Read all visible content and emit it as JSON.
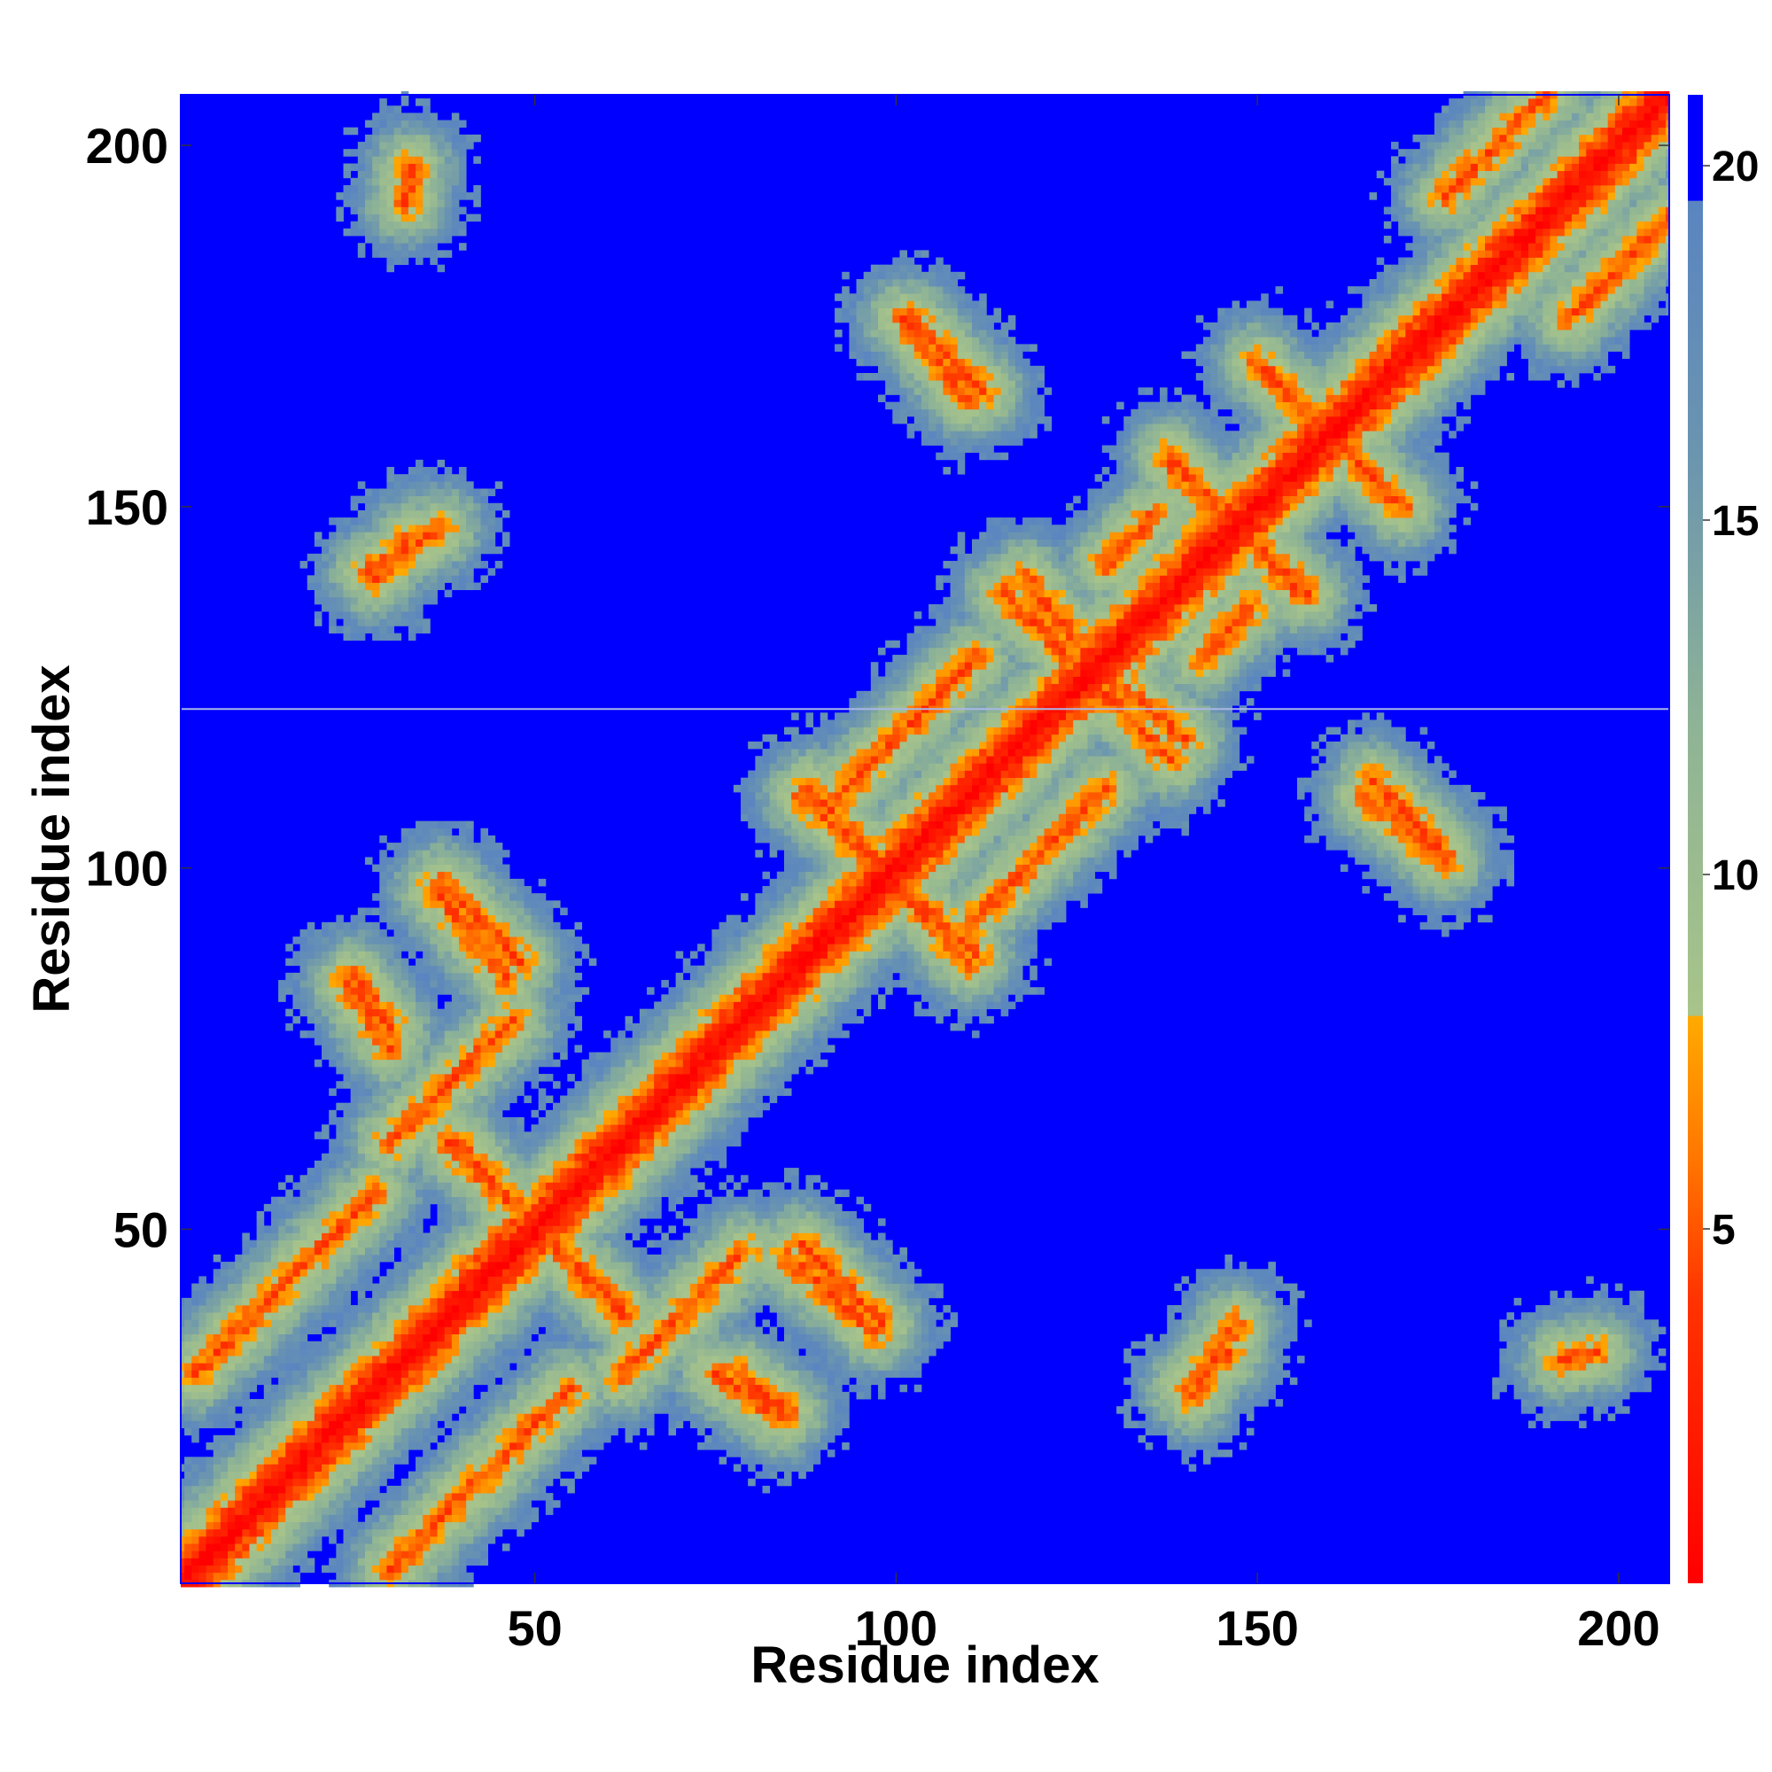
{
  "chart_data": {
    "type": "heatmap",
    "title": "",
    "xlabel": "Residue index",
    "ylabel": "Residue index",
    "n_residues": 207,
    "xlim": [
      1,
      207
    ],
    "ylim": [
      1,
      207
    ],
    "x_ticks": [
      {
        "value": 50,
        "label": "50"
      },
      {
        "value": 100,
        "label": "100"
      },
      {
        "value": 150,
        "label": "150"
      },
      {
        "value": 200,
        "label": "200"
      }
    ],
    "y_ticks": [
      {
        "value": 50,
        "label": "50"
      },
      {
        "value": 100,
        "label": "100"
      },
      {
        "value": 150,
        "label": "150"
      },
      {
        "value": 200,
        "label": "200"
      }
    ],
    "colorbar": {
      "range": [
        0,
        21
      ],
      "ticks": [
        {
          "value": 5,
          "label": "5"
        },
        {
          "value": 10,
          "label": "10"
        },
        {
          "value": 15,
          "label": "15"
        },
        {
          "value": 20,
          "label": "20"
        }
      ],
      "stops": [
        {
          "value": 0,
          "color": "#ff0000"
        },
        {
          "value": 4,
          "color": "#ff3300"
        },
        {
          "value": 6,
          "color": "#ff7700"
        },
        {
          "value": 8,
          "color": "#ffaa00"
        },
        {
          "value": 8.01,
          "color": "#a8c48a"
        },
        {
          "value": 12,
          "color": "#8fb495"
        },
        {
          "value": 16,
          "color": "#6a94b0"
        },
        {
          "value": 19.5,
          "color": "#5a85c0"
        },
        {
          "value": 19.51,
          "color": "#0000ff"
        },
        {
          "value": 21,
          "color": "#0000ff"
        }
      ]
    },
    "features": {
      "diagonal": {
        "from": 1,
        "to": 207,
        "note": "self-contact diagonal, distance ~0-4"
      },
      "parallel_strands": [
        {
          "x": [
            3,
            28
          ],
          "y": [
            30,
            55
          ]
        },
        {
          "x": [
            30,
            47
          ],
          "y": [
            62,
            79
          ]
        },
        {
          "x": [
            92,
            111
          ],
          "y": [
            110,
            129
          ]
        },
        {
          "x": [
            129,
            136
          ],
          "y": [
            142,
            149
          ]
        },
        {
          "x": [
            176,
            190
          ],
          "y": [
            193,
            207
          ]
        }
      ],
      "antiparallel_strands": [
        {
          "x": [
            37,
            48
          ],
          "y": [
            98,
            87
          ]
        },
        {
          "x": [
            39,
            62
          ],
          "y": [
            62,
            38
          ]
        },
        {
          "x": [
            85,
            97
          ],
          "y": [
            46,
            36
          ]
        },
        {
          "x": [
            87,
            111
          ],
          "y": [
            110,
            88
          ]
        },
        {
          "x": [
            75,
            84
          ],
          "y": [
            30,
            24
          ]
        },
        {
          "x": [
            102,
            112
          ],
          "y": [
            176,
            166
          ]
        },
        {
          "x": [
            115,
            125
          ],
          "y": [
            138,
            128
          ]
        },
        {
          "x": [
            130,
            140
          ],
          "y": [
            126,
            118
          ]
        },
        {
          "x": [
            138,
            156
          ],
          "y": [
            157,
            138
          ]
        },
        {
          "x": [
            150,
            170
          ],
          "y": [
            170,
            150
          ]
        },
        {
          "x": [
            165,
            176
          ],
          "y": [
            110,
            101
          ]
        },
        {
          "x": [
            27,
            37
          ],
          "y": [
            141,
            147
          ]
        },
        {
          "x": [
            140,
            146
          ],
          "y": [
            28,
            33
          ]
        },
        {
          "x": [
            25,
            30
          ],
          "y": [
            85,
            78
          ]
        },
        {
          "x": [
            192,
            197
          ],
          "y": [
            32,
            33
          ]
        }
      ],
      "horizontal_line_y": 122
    }
  }
}
